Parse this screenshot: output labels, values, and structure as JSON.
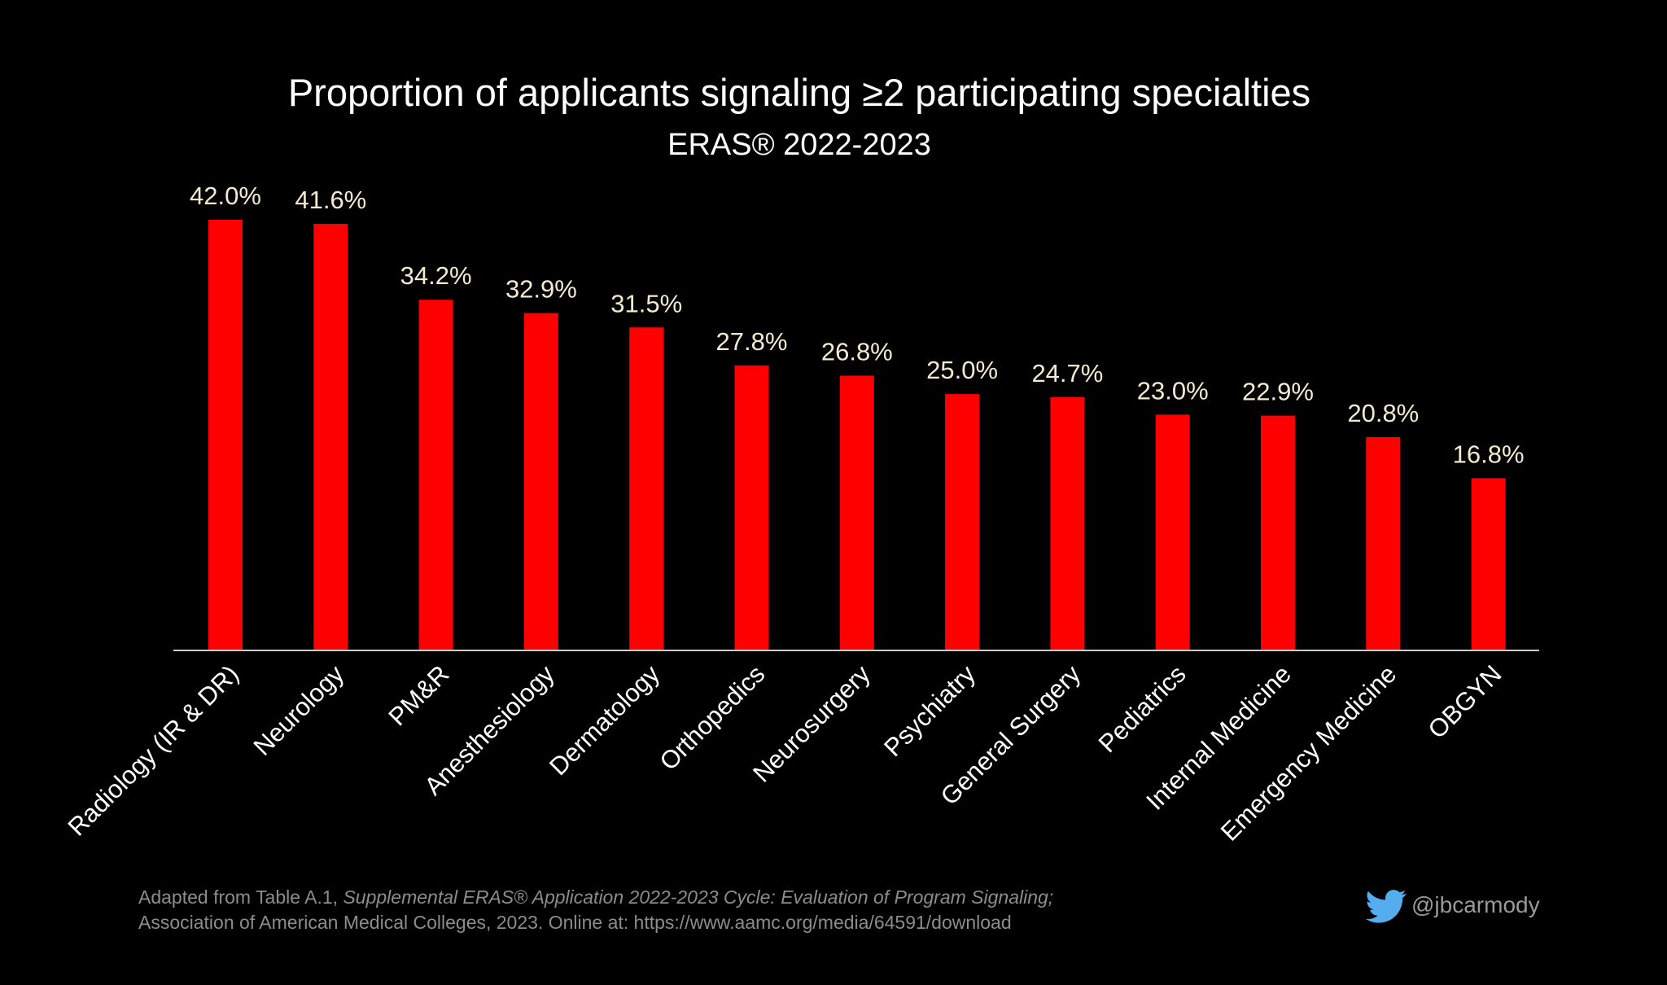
{
  "chart_data": {
    "type": "bar",
    "title": "Proportion of applicants signaling ≥2 participating specialties",
    "subtitle": "ERAS® 2022-2023",
    "categories": [
      "Radiology (IR & DR)",
      "Neurology",
      "PM&R",
      "Anesthesiology",
      "Dermatology",
      "Orthopedics",
      "Neurosurgery",
      "Psychiatry",
      "General Surgery",
      "Pediatrics",
      "Internal Medicine",
      "Emergency Medicine",
      "OBGYN"
    ],
    "values": [
      42.0,
      41.6,
      34.2,
      32.9,
      31.5,
      27.8,
      26.8,
      25.0,
      24.7,
      23.0,
      22.9,
      20.8,
      16.8
    ],
    "value_labels": [
      "42.0%",
      "41.6%",
      "34.2%",
      "32.9%",
      "31.5%",
      "27.8%",
      "26.8%",
      "25.0%",
      "24.7%",
      "23.0%",
      "22.9%",
      "20.8%",
      "16.8%"
    ],
    "xlabel": "",
    "ylabel": "",
    "ylim": [
      0,
      42
    ],
    "grid": false,
    "colors": {
      "bar": "#ff0000",
      "value_label": "#f3ead0",
      "background": "#000000",
      "axis": "#cccccc"
    }
  },
  "footer": {
    "line1_prefix": "Adapted from Table A.1, ",
    "line1_italic": "Supplemental ERAS® Application 2022-2023 Cycle: Evaluation of Program Signaling;",
    "line2": "Association of American Medical Colleges, 2023. Online at: https://www.aamc.org/media/64591/download"
  },
  "credit": {
    "icon": "twitter-bird-icon",
    "handle": "@jbcarmody",
    "color": "#55acee"
  }
}
